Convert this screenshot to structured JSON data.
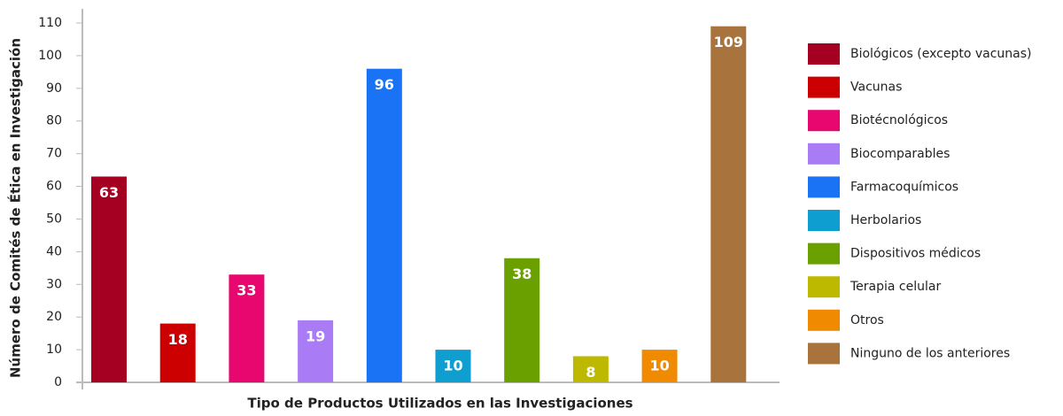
{
  "chart_data": {
    "type": "bar",
    "y_label": "Número de Comités de Ética en Investigación",
    "x_label": "Tipo de Productos  Utilizados en las Investigaciones",
    "categories": [
      "Biológicos (excepto vacunas)",
      "Vacunas",
      "Biotécnológicos",
      "Biocomparables",
      "Farmacoquímicos",
      "Herbolarios",
      "Dispositivos médicos",
      "Terapia celular",
      "Otros",
      "Ninguno de los anteriores"
    ],
    "values": [
      63,
      18,
      33,
      19,
      96,
      10,
      38,
      8,
      10,
      109
    ],
    "colors": [
      "#a50021",
      "#cc0000",
      "#e8066f",
      "#a97cf5",
      "#1a73f5",
      "#0e9fd0",
      "#6aa000",
      "#bdb800",
      "#f08a00",
      "#a8733c"
    ],
    "ylim": [
      0,
      110
    ],
    "yticks": [
      0,
      10,
      20,
      30,
      40,
      50,
      60,
      70,
      80,
      90,
      100,
      110
    ],
    "legend": "right"
  }
}
